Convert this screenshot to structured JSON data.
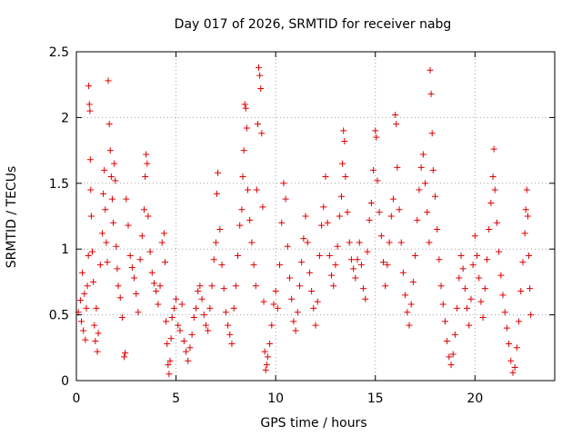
{
  "chart_data": {
    "type": "scatter",
    "title": "Day 017 of 2026, SRMTID for receiver nabg",
    "xlabel": "GPS time / hours",
    "ylabel": "SRMTID / TECUs",
    "xlim": [
      0,
      24
    ],
    "ylim": [
      0,
      2.5
    ],
    "grid": true,
    "marker": "plus",
    "marker_color": "#e00000",
    "xticks": [
      {
        "value": 0,
        "label": "0"
      },
      {
        "value": 5,
        "label": "5"
      },
      {
        "value": 10,
        "label": "10"
      },
      {
        "value": 15,
        "label": "15"
      },
      {
        "value": 20,
        "label": "20"
      }
    ],
    "yticks": [
      {
        "value": 0,
        "label": "0"
      },
      {
        "value": 0.5,
        "label": "0.5"
      },
      {
        "value": 1,
        "label": "1"
      },
      {
        "value": 1.5,
        "label": "1.5"
      },
      {
        "value": 2,
        "label": "2"
      },
      {
        "value": 2.5,
        "label": "2.5"
      }
    ],
    "series": [
      {
        "name": "SRMTID",
        "points": [
          [
            0.1,
            0.52
          ],
          [
            0.2,
            0.61
          ],
          [
            0.25,
            0.45
          ],
          [
            0.3,
            0.82
          ],
          [
            0.35,
            0.38
          ],
          [
            0.4,
            0.66
          ],
          [
            0.45,
            0.31
          ],
          [
            0.5,
            0.55
          ],
          [
            0.55,
            0.72
          ],
          [
            0.6,
            0.95
          ],
          [
            0.62,
            2.24
          ],
          [
            0.65,
            2.1
          ],
          [
            0.68,
            2.05
          ],
          [
            0.7,
            1.68
          ],
          [
            0.72,
            1.45
          ],
          [
            0.75,
            1.25
          ],
          [
            0.8,
            0.98
          ],
          [
            0.85,
            0.75
          ],
          [
            0.9,
            0.42
          ],
          [
            0.95,
            0.3
          ],
          [
            1.0,
            0.55
          ],
          [
            1.05,
            0.22
          ],
          [
            1.1,
            0.36
          ],
          [
            1.2,
            0.88
          ],
          [
            1.3,
            1.12
          ],
          [
            1.35,
            1.42
          ],
          [
            1.4,
            1.6
          ],
          [
            1.45,
            1.3
          ],
          [
            1.5,
            1.05
          ],
          [
            1.55,
            0.9
          ],
          [
            1.6,
            2.28
          ],
          [
            1.65,
            1.95
          ],
          [
            1.7,
            1.75
          ],
          [
            1.75,
            1.55
          ],
          [
            1.8,
            1.38
          ],
          [
            1.85,
            1.2
          ],
          [
            1.9,
            1.65
          ],
          [
            1.95,
            1.52
          ],
          [
            2.0,
            1.02
          ],
          [
            2.05,
            0.85
          ],
          [
            2.1,
            0.72
          ],
          [
            2.2,
            0.63
          ],
          [
            2.3,
            0.48
          ],
          [
            2.4,
            0.18
          ],
          [
            2.45,
            0.21
          ],
          [
            2.5,
            1.38
          ],
          [
            2.6,
            1.18
          ],
          [
            2.7,
            0.95
          ],
          [
            2.8,
            0.86
          ],
          [
            2.9,
            0.78
          ],
          [
            3.0,
            0.66
          ],
          [
            3.1,
            0.52
          ],
          [
            3.2,
            0.92
          ],
          [
            3.3,
            1.1
          ],
          [
            3.4,
            1.3
          ],
          [
            3.45,
            1.55
          ],
          [
            3.5,
            1.72
          ],
          [
            3.55,
            1.65
          ],
          [
            3.6,
            1.25
          ],
          [
            3.7,
            0.98
          ],
          [
            3.8,
            0.82
          ],
          [
            3.9,
            0.74
          ],
          [
            4.0,
            0.68
          ],
          [
            4.1,
            0.58
          ],
          [
            4.2,
            0.72
          ],
          [
            4.3,
            1.05
          ],
          [
            4.4,
            1.12
          ],
          [
            4.45,
            0.9
          ],
          [
            4.5,
            0.45
          ],
          [
            4.55,
            0.28
          ],
          [
            4.6,
            0.12
          ],
          [
            4.65,
            0.05
          ],
          [
            4.7,
            0.15
          ],
          [
            4.75,
            0.32
          ],
          [
            4.8,
            0.48
          ],
          [
            4.9,
            0.55
          ],
          [
            5.0,
            0.62
          ],
          [
            5.1,
            0.42
          ],
          [
            5.2,
            0.38
          ],
          [
            5.3,
            0.58
          ],
          [
            5.4,
            0.3
          ],
          [
            5.5,
            0.22
          ],
          [
            5.6,
            0.15
          ],
          [
            5.7,
            0.25
          ],
          [
            5.8,
            0.35
          ],
          [
            5.9,
            0.48
          ],
          [
            6.0,
            0.55
          ],
          [
            6.1,
            0.68
          ],
          [
            6.2,
            0.72
          ],
          [
            6.3,
            0.62
          ],
          [
            6.4,
            0.5
          ],
          [
            6.5,
            0.42
          ],
          [
            6.6,
            0.38
          ],
          [
            6.7,
            0.55
          ],
          [
            6.8,
            0.72
          ],
          [
            6.9,
            0.92
          ],
          [
            7.0,
            1.05
          ],
          [
            7.05,
            1.42
          ],
          [
            7.1,
            1.58
          ],
          [
            7.2,
            1.15
          ],
          [
            7.3,
            0.88
          ],
          [
            7.4,
            0.7
          ],
          [
            7.5,
            0.52
          ],
          [
            7.6,
            0.42
          ],
          [
            7.7,
            0.35
          ],
          [
            7.8,
            0.28
          ],
          [
            7.9,
            0.55
          ],
          [
            8.0,
            0.72
          ],
          [
            8.1,
            0.95
          ],
          [
            8.2,
            1.18
          ],
          [
            8.3,
            1.3
          ],
          [
            8.35,
            1.55
          ],
          [
            8.4,
            1.75
          ],
          [
            8.45,
            2.1
          ],
          [
            8.5,
            2.07
          ],
          [
            8.55,
            1.92
          ],
          [
            8.6,
            1.45
          ],
          [
            8.7,
            1.22
          ],
          [
            8.8,
            1.05
          ],
          [
            8.9,
            0.88
          ],
          [
            9.0,
            0.72
          ],
          [
            9.05,
            1.45
          ],
          [
            9.1,
            1.95
          ],
          [
            9.15,
            2.38
          ],
          [
            9.2,
            2.32
          ],
          [
            9.25,
            2.22
          ],
          [
            9.3,
            1.88
          ],
          [
            9.35,
            1.32
          ],
          [
            9.4,
            0.6
          ],
          [
            9.45,
            0.22
          ],
          [
            9.5,
            0.08
          ],
          [
            9.55,
            0.12
          ],
          [
            9.6,
            0.18
          ],
          [
            9.7,
            0.28
          ],
          [
            9.8,
            0.42
          ],
          [
            9.9,
            0.58
          ],
          [
            10.0,
            0.68
          ],
          [
            10.1,
            0.55
          ],
          [
            10.2,
            0.88
          ],
          [
            10.3,
            1.2
          ],
          [
            10.4,
            1.5
          ],
          [
            10.5,
            1.38
          ],
          [
            10.6,
            1.02
          ],
          [
            10.7,
            0.78
          ],
          [
            10.8,
            0.62
          ],
          [
            10.9,
            0.45
          ],
          [
            11.0,
            0.38
          ],
          [
            11.1,
            0.52
          ],
          [
            11.2,
            0.72
          ],
          [
            11.3,
            0.9
          ],
          [
            11.4,
            1.08
          ],
          [
            11.5,
            1.25
          ],
          [
            11.6,
            1.05
          ],
          [
            11.7,
            0.82
          ],
          [
            11.8,
            0.68
          ],
          [
            11.9,
            0.55
          ],
          [
            12.0,
            0.42
          ],
          [
            12.1,
            0.6
          ],
          [
            12.2,
            0.95
          ],
          [
            12.3,
            1.18
          ],
          [
            12.4,
            1.32
          ],
          [
            12.5,
            1.55
          ],
          [
            12.6,
            1.2
          ],
          [
            12.7,
            0.95
          ],
          [
            12.8,
            0.8
          ],
          [
            12.9,
            0.72
          ],
          [
            13.0,
            0.88
          ],
          [
            13.1,
            1.02
          ],
          [
            13.2,
            1.25
          ],
          [
            13.3,
            1.4
          ],
          [
            13.35,
            1.65
          ],
          [
            13.4,
            1.9
          ],
          [
            13.45,
            1.82
          ],
          [
            13.5,
            1.55
          ],
          [
            13.6,
            1.28
          ],
          [
            13.7,
            1.05
          ],
          [
            13.8,
            0.92
          ],
          [
            13.9,
            0.85
          ],
          [
            14.0,
            0.78
          ],
          [
            14.1,
            0.92
          ],
          [
            14.2,
            1.05
          ],
          [
            14.3,
            0.88
          ],
          [
            14.4,
            0.7
          ],
          [
            14.5,
            0.62
          ],
          [
            14.6,
            0.98
          ],
          [
            14.7,
            1.22
          ],
          [
            14.8,
            1.35
          ],
          [
            14.9,
            1.6
          ],
          [
            15.0,
            1.9
          ],
          [
            15.05,
            1.85
          ],
          [
            15.1,
            1.52
          ],
          [
            15.2,
            1.28
          ],
          [
            15.3,
            1.1
          ],
          [
            15.4,
            0.9
          ],
          [
            15.5,
            0.72
          ],
          [
            15.6,
            0.88
          ],
          [
            15.7,
            1.05
          ],
          [
            15.8,
            1.25
          ],
          [
            15.9,
            1.38
          ],
          [
            16.0,
            2.02
          ],
          [
            16.05,
            1.95
          ],
          [
            16.1,
            1.62
          ],
          [
            16.2,
            1.3
          ],
          [
            16.3,
            1.05
          ],
          [
            16.4,
            0.82
          ],
          [
            16.5,
            0.65
          ],
          [
            16.6,
            0.52
          ],
          [
            16.7,
            0.42
          ],
          [
            16.8,
            0.58
          ],
          [
            16.9,
            0.75
          ],
          [
            17.0,
            0.95
          ],
          [
            17.1,
            1.22
          ],
          [
            17.2,
            1.45
          ],
          [
            17.3,
            1.62
          ],
          [
            17.4,
            1.72
          ],
          [
            17.5,
            1.5
          ],
          [
            17.6,
            1.28
          ],
          [
            17.7,
            1.05
          ],
          [
            17.75,
            2.36
          ],
          [
            17.8,
            2.18
          ],
          [
            17.85,
            1.88
          ],
          [
            17.9,
            1.6
          ],
          [
            18.0,
            1.4
          ],
          [
            18.1,
            1.15
          ],
          [
            18.2,
            0.92
          ],
          [
            18.3,
            0.72
          ],
          [
            18.4,
            0.58
          ],
          [
            18.5,
            0.45
          ],
          [
            18.6,
            0.3
          ],
          [
            18.7,
            0.18
          ],
          [
            18.8,
            0.12
          ],
          [
            18.9,
            0.2
          ],
          [
            19.0,
            0.35
          ],
          [
            19.1,
            0.55
          ],
          [
            19.2,
            0.78
          ],
          [
            19.3,
            0.95
          ],
          [
            19.4,
            0.85
          ],
          [
            19.5,
            0.7
          ],
          [
            19.6,
            0.55
          ],
          [
            19.7,
            0.42
          ],
          [
            19.8,
            0.62
          ],
          [
            19.9,
            0.88
          ],
          [
            20.0,
            1.1
          ],
          [
            20.1,
            0.95
          ],
          [
            20.2,
            0.78
          ],
          [
            20.3,
            0.6
          ],
          [
            20.4,
            0.48
          ],
          [
            20.5,
            0.7
          ],
          [
            20.6,
            0.92
          ],
          [
            20.7,
            1.15
          ],
          [
            20.8,
            1.35
          ],
          [
            20.9,
            1.55
          ],
          [
            20.95,
            1.76
          ],
          [
            21.0,
            1.45
          ],
          [
            21.1,
            1.2
          ],
          [
            21.2,
            0.98
          ],
          [
            21.3,
            0.8
          ],
          [
            21.4,
            0.65
          ],
          [
            21.5,
            0.52
          ],
          [
            21.6,
            0.4
          ],
          [
            21.7,
            0.28
          ],
          [
            21.8,
            0.15
          ],
          [
            21.9,
            0.06
          ],
          [
            22.0,
            0.1
          ],
          [
            22.1,
            0.25
          ],
          [
            22.2,
            0.45
          ],
          [
            22.3,
            0.68
          ],
          [
            22.4,
            0.9
          ],
          [
            22.5,
            1.12
          ],
          [
            22.55,
            1.3
          ],
          [
            22.6,
            1.45
          ],
          [
            22.65,
            1.25
          ],
          [
            22.7,
            0.95
          ],
          [
            22.75,
            0.7
          ],
          [
            22.8,
            0.5
          ]
        ]
      }
    ]
  }
}
